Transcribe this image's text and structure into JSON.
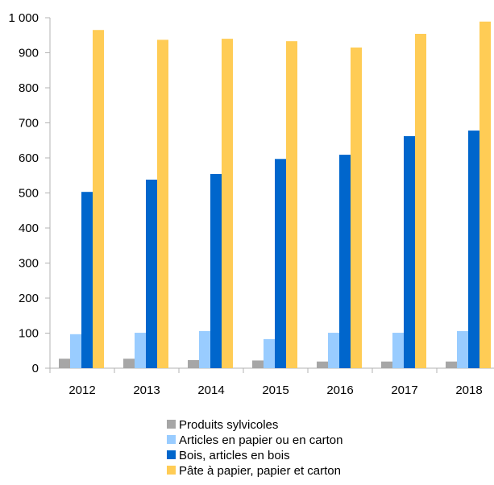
{
  "chart_data": {
    "type": "bar",
    "title": "",
    "xlabel": "",
    "ylabel": "",
    "categories": [
      "2012",
      "2013",
      "2014",
      "2015",
      "2016",
      "2017",
      "2018"
    ],
    "ylim": [
      0,
      1000
    ],
    "yticks": [
      0,
      100,
      200,
      300,
      400,
      500,
      600,
      700,
      800,
      900,
      1000
    ],
    "ytick_labels": [
      "0",
      "100",
      "200",
      "300",
      "400",
      "500",
      "600",
      "700",
      "800",
      "900",
      "1 000"
    ],
    "grid": false,
    "legend_position": "bottom",
    "series": [
      {
        "name": "Produits sylvicoles",
        "color": "#a6a6a6",
        "values": [
          27,
          27,
          23,
          22,
          19,
          19,
          19
        ]
      },
      {
        "name": "Articles en papier ou en carton",
        "color": "#99ccff",
        "values": [
          97,
          101,
          106,
          83,
          101,
          101,
          106
        ]
      },
      {
        "name": "Bois, articles en bois",
        "color": "#0066cc",
        "values": [
          503,
          538,
          554,
          597,
          609,
          662,
          678
        ]
      },
      {
        "name": "Pâte à papier, papier et carton",
        "color": "#ffcc55",
        "values": [
          965,
          937,
          940,
          933,
          915,
          954,
          989
        ]
      }
    ]
  }
}
